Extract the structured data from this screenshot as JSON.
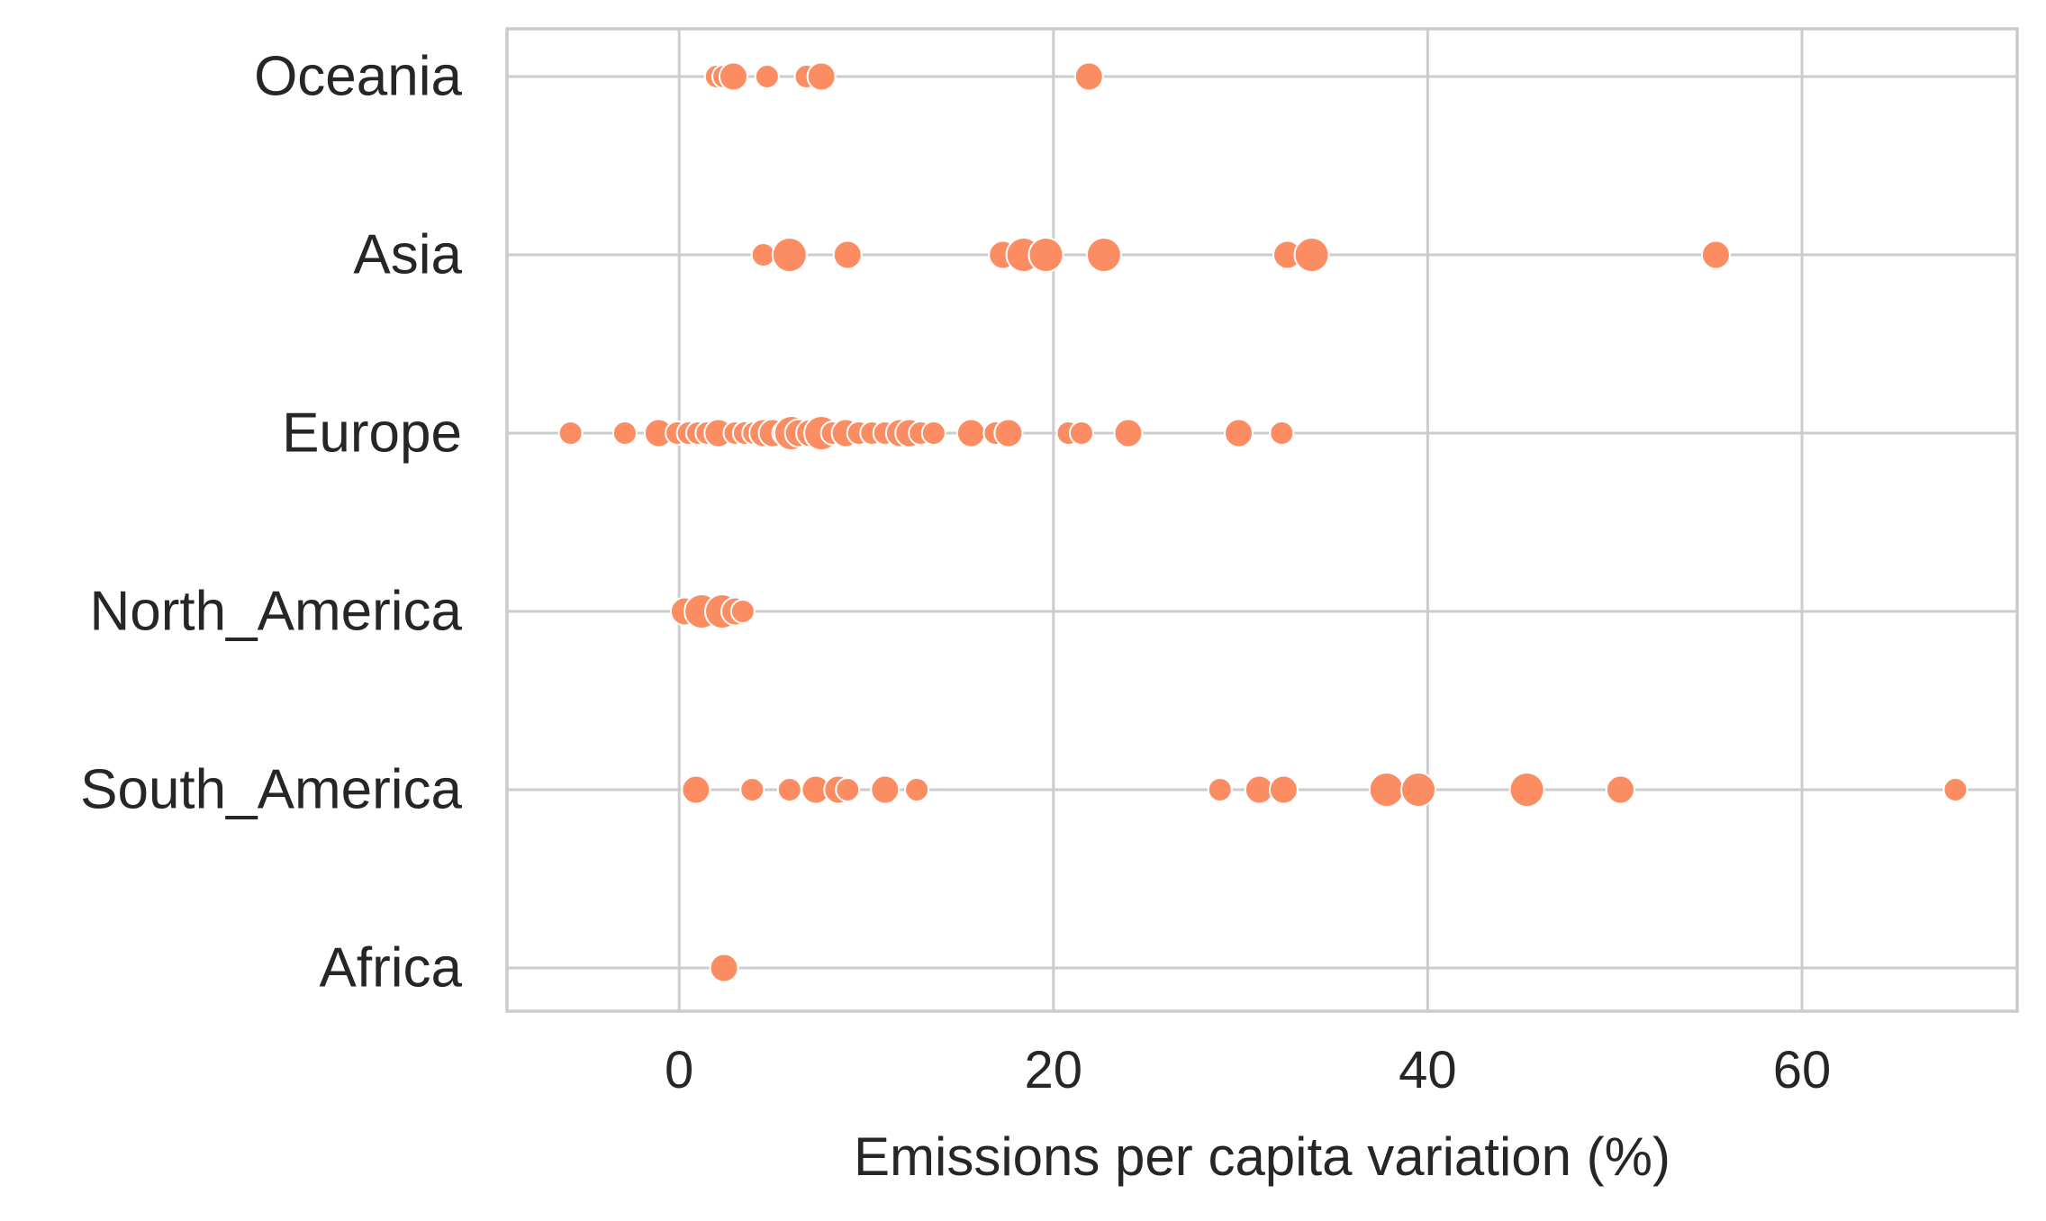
{
  "colors": {
    "marker": "#FC8D62",
    "marker_edge": "#ffffff",
    "grid": "#cccccc",
    "spine": "#cccccc",
    "text": "#262626",
    "background": "#ffffff"
  },
  "chart_data": {
    "type": "scatter",
    "title": "",
    "xlabel": "Emissions per capita variation (%)",
    "ylabel": "",
    "xlim": [
      -9.2,
      71.5
    ],
    "xticks": [
      0,
      20,
      40,
      60
    ],
    "grid": true,
    "legend": "none",
    "categories": [
      "Oceania",
      "Asia",
      "Europe",
      "North_America",
      "South_America",
      "Africa"
    ],
    "series": [
      {
        "category": "Oceania",
        "points": [
          {
            "x": 2.0,
            "size": "small"
          },
          {
            "x": 2.4,
            "size": "small"
          },
          {
            "x": 2.9,
            "size": "medium"
          },
          {
            "x": 4.7,
            "size": "small"
          },
          {
            "x": 6.8,
            "size": "small"
          },
          {
            "x": 7.6,
            "size": "medium"
          },
          {
            "x": 21.9,
            "size": "medium"
          }
        ]
      },
      {
        "category": "Asia",
        "points": [
          {
            "x": 4.5,
            "size": "small"
          },
          {
            "x": 5.9,
            "size": "large"
          },
          {
            "x": 9.0,
            "size": "medium"
          },
          {
            "x": 17.3,
            "size": "medium"
          },
          {
            "x": 18.4,
            "size": "large"
          },
          {
            "x": 19.6,
            "size": "large"
          },
          {
            "x": 22.7,
            "size": "large"
          },
          {
            "x": 32.5,
            "size": "medium"
          },
          {
            "x": 33.8,
            "size": "large"
          },
          {
            "x": 55.4,
            "size": "medium"
          }
        ]
      },
      {
        "category": "Europe",
        "points": [
          {
            "x": -5.8,
            "size": "small"
          },
          {
            "x": -2.9,
            "size": "small"
          },
          {
            "x": -1.1,
            "size": "medium"
          },
          {
            "x": -0.1,
            "size": "small"
          },
          {
            "x": 0.5,
            "size": "small"
          },
          {
            "x": 1.0,
            "size": "small"
          },
          {
            "x": 1.5,
            "size": "small"
          },
          {
            "x": 2.1,
            "size": "medium"
          },
          {
            "x": 3.0,
            "size": "small"
          },
          {
            "x": 3.5,
            "size": "small"
          },
          {
            "x": 4.0,
            "size": "small"
          },
          {
            "x": 4.5,
            "size": "medium"
          },
          {
            "x": 5.0,
            "size": "medium"
          },
          {
            "x": 5.6,
            "size": "small"
          },
          {
            "x": 6.0,
            "size": "large"
          },
          {
            "x": 6.4,
            "size": "medium"
          },
          {
            "x": 7.0,
            "size": "medium"
          },
          {
            "x": 7.6,
            "size": "large"
          },
          {
            "x": 8.2,
            "size": "small"
          },
          {
            "x": 8.9,
            "size": "medium"
          },
          {
            "x": 9.6,
            "size": "small"
          },
          {
            "x": 10.3,
            "size": "small"
          },
          {
            "x": 11.0,
            "size": "small"
          },
          {
            "x": 11.8,
            "size": "medium"
          },
          {
            "x": 12.3,
            "size": "medium"
          },
          {
            "x": 12.9,
            "size": "small"
          },
          {
            "x": 13.6,
            "size": "small"
          },
          {
            "x": 15.6,
            "size": "medium"
          },
          {
            "x": 16.9,
            "size": "small"
          },
          {
            "x": 17.6,
            "size": "medium"
          },
          {
            "x": 20.8,
            "size": "small"
          },
          {
            "x": 21.5,
            "size": "small"
          },
          {
            "x": 24.0,
            "size": "medium"
          },
          {
            "x": 29.9,
            "size": "medium"
          },
          {
            "x": 32.2,
            "size": "small"
          }
        ]
      },
      {
        "category": "North_America",
        "points": [
          {
            "x": 0.3,
            "size": "medium"
          },
          {
            "x": 1.2,
            "size": "large"
          },
          {
            "x": 2.3,
            "size": "large"
          },
          {
            "x": 3.0,
            "size": "medium"
          },
          {
            "x": 3.4,
            "size": "small"
          }
        ]
      },
      {
        "category": "South_America",
        "points": [
          {
            "x": 0.9,
            "size": "medium"
          },
          {
            "x": 3.9,
            "size": "small"
          },
          {
            "x": 5.9,
            "size": "small"
          },
          {
            "x": 7.3,
            "size": "medium"
          },
          {
            "x": 8.5,
            "size": "medium"
          },
          {
            "x": 9.0,
            "size": "small"
          },
          {
            "x": 11.0,
            "size": "medium"
          },
          {
            "x": 12.7,
            "size": "small"
          },
          {
            "x": 28.9,
            "size": "small"
          },
          {
            "x": 31.0,
            "size": "medium"
          },
          {
            "x": 32.3,
            "size": "medium"
          },
          {
            "x": 37.8,
            "size": "large"
          },
          {
            "x": 39.5,
            "size": "large"
          },
          {
            "x": 45.3,
            "size": "large"
          },
          {
            "x": 50.3,
            "size": "medium"
          },
          {
            "x": 68.2,
            "size": "small"
          }
        ]
      },
      {
        "category": "Africa",
        "points": [
          {
            "x": 2.4,
            "size": "medium"
          }
        ]
      }
    ]
  }
}
